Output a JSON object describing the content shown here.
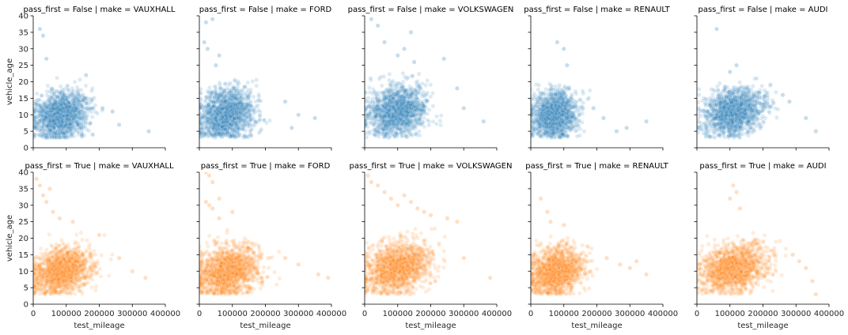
{
  "chart_data": {
    "type": "scatter",
    "layout": "facet-grid",
    "row_variable": "pass_first",
    "col_variable": "make",
    "xlabel": "test_mileage",
    "ylabel": "vehicle_age",
    "xlim": [
      0,
      400000
    ],
    "ylim": [
      0,
      40
    ],
    "xticks": [
      0,
      100000,
      200000,
      300000,
      400000
    ],
    "yticks": [
      0,
      5,
      10,
      15,
      20,
      25,
      30,
      35,
      40
    ],
    "grid": false,
    "alpha": 0.15,
    "rows": [
      {
        "value": "False",
        "color": "#1f77b4"
      },
      {
        "value": "True",
        "color": "#ff7f0e"
      }
    ],
    "panels": [
      {
        "title": "pass_first = False | make = VAUXHALL",
        "row": 0,
        "col": 0,
        "cluster": {
          "x_center": 85000,
          "x_spread": 40000,
          "y_center": 10,
          "y_spread": 3.5,
          "x_max_typical": 220000,
          "y_max_typical": 22
        },
        "outliers": [
          [
            20000,
            36
          ],
          [
            30000,
            34
          ],
          [
            40000,
            27
          ],
          [
            160000,
            22
          ],
          [
            210000,
            12
          ],
          [
            240000,
            11
          ],
          [
            260000,
            7
          ],
          [
            350000,
            5
          ],
          [
            180000,
            4
          ]
        ]
      },
      {
        "title": "pass_first = False | make = FORD",
        "row": 0,
        "col": 1,
        "cluster": {
          "x_center": 80000,
          "x_spread": 42000,
          "y_center": 10,
          "y_spread": 3.8,
          "x_max_typical": 230000,
          "y_max_typical": 22
        },
        "outliers": [
          [
            20000,
            38
          ],
          [
            40000,
            39
          ],
          [
            15000,
            32
          ],
          [
            25000,
            30
          ],
          [
            60000,
            28
          ],
          [
            50000,
            25
          ],
          [
            260000,
            14
          ],
          [
            300000,
            10
          ],
          [
            280000,
            6
          ],
          [
            350000,
            9
          ]
        ]
      },
      {
        "title": "pass_first = False | make = VOLKSWAGEN",
        "row": 0,
        "col": 2,
        "cluster": {
          "x_center": 95000,
          "x_spread": 45000,
          "y_center": 11,
          "y_spread": 3.8,
          "x_max_typical": 240000,
          "y_max_typical": 24
        },
        "outliers": [
          [
            20000,
            39
          ],
          [
            40000,
            37
          ],
          [
            140000,
            35
          ],
          [
            60000,
            32
          ],
          [
            120000,
            30
          ],
          [
            100000,
            28
          ],
          [
            150000,
            26
          ],
          [
            280000,
            18
          ],
          [
            300000,
            12
          ],
          [
            360000,
            8
          ],
          [
            240000,
            27
          ]
        ]
      },
      {
        "title": "pass_first = False | make = RENAULT",
        "row": 0,
        "col": 3,
        "cluster": {
          "x_center": 70000,
          "x_spread": 35000,
          "y_center": 10,
          "y_spread": 3.5,
          "x_max_typical": 200000,
          "y_max_typical": 20
        },
        "outliers": [
          [
            80000,
            32
          ],
          [
            100000,
            30
          ],
          [
            110000,
            25
          ],
          [
            190000,
            12
          ],
          [
            220000,
            9
          ],
          [
            290000,
            6
          ],
          [
            350000,
            8
          ],
          [
            260000,
            5
          ]
        ]
      },
      {
        "title": "pass_first = False | make = AUDI",
        "row": 0,
        "col": 4,
        "cluster": {
          "x_center": 110000,
          "x_spread": 45000,
          "y_center": 11,
          "y_spread": 3.5,
          "x_max_typical": 250000,
          "y_max_typical": 22
        },
        "outliers": [
          [
            60000,
            36
          ],
          [
            120000,
            25
          ],
          [
            100000,
            23
          ],
          [
            260000,
            16
          ],
          [
            280000,
            14
          ],
          [
            330000,
            9
          ],
          [
            360000,
            5
          ]
        ]
      },
      {
        "title": "pass_first = True | make = VAUXHALL",
        "row": 1,
        "col": 0,
        "cluster": {
          "x_center": 85000,
          "x_spread": 45000,
          "y_center": 10,
          "y_spread": 3.5,
          "x_max_typical": 240000,
          "y_max_typical": 22
        },
        "outliers": [
          [
            10000,
            38
          ],
          [
            20000,
            36
          ],
          [
            30000,
            33
          ],
          [
            40000,
            31
          ],
          [
            50000,
            35
          ],
          [
            60000,
            28
          ],
          [
            80000,
            26
          ],
          [
            120000,
            25
          ],
          [
            200000,
            21
          ],
          [
            260000,
            14
          ],
          [
            300000,
            10
          ],
          [
            340000,
            8
          ]
        ]
      },
      {
        "title": "pass_first = True | make = FORD",
        "row": 1,
        "col": 1,
        "cluster": {
          "x_center": 85000,
          "x_spread": 48000,
          "y_center": 10,
          "y_spread": 3.8,
          "x_max_typical": 260000,
          "y_max_typical": 23
        },
        "outliers": [
          [
            20000,
            40
          ],
          [
            30000,
            39
          ],
          [
            40000,
            37
          ],
          [
            20000,
            31
          ],
          [
            30000,
            30
          ],
          [
            40000,
            29
          ],
          [
            60000,
            32
          ],
          [
            60000,
            26
          ],
          [
            100000,
            28
          ],
          [
            260000,
            14
          ],
          [
            300000,
            12
          ],
          [
            360000,
            9
          ],
          [
            390000,
            8
          ]
        ]
      },
      {
        "title": "pass_first = True | make = VOLKSWAGEN",
        "row": 1,
        "col": 2,
        "cluster": {
          "x_center": 95000,
          "x_spread": 48000,
          "y_center": 11,
          "y_spread": 3.8,
          "x_max_typical": 270000,
          "y_max_typical": 23
        },
        "outliers": [
          [
            10000,
            39
          ],
          [
            20000,
            37
          ],
          [
            40000,
            36
          ],
          [
            60000,
            34
          ],
          [
            80000,
            32
          ],
          [
            100000,
            30
          ],
          [
            120000,
            33
          ],
          [
            140000,
            31
          ],
          [
            160000,
            29
          ],
          [
            180000,
            28
          ],
          [
            200000,
            27
          ],
          [
            250000,
            26
          ],
          [
            280000,
            25
          ],
          [
            300000,
            14
          ],
          [
            380000,
            8
          ]
        ]
      },
      {
        "title": "pass_first = True | make = RENAULT",
        "row": 1,
        "col": 3,
        "cluster": {
          "x_center": 75000,
          "x_spread": 40000,
          "y_center": 10,
          "y_spread": 3.5,
          "x_max_typical": 220000,
          "y_max_typical": 21
        },
        "outliers": [
          [
            30000,
            32
          ],
          [
            50000,
            28
          ],
          [
            60000,
            25
          ],
          [
            100000,
            24
          ],
          [
            230000,
            14
          ],
          [
            270000,
            12
          ],
          [
            300000,
            11
          ],
          [
            320000,
            13
          ],
          [
            350000,
            9
          ]
        ]
      },
      {
        "title": "pass_first = True | make = AUDI",
        "row": 1,
        "col": 4,
        "cluster": {
          "x_center": 110000,
          "x_spread": 48000,
          "y_center": 11,
          "y_spread": 3.5,
          "x_max_typical": 270000,
          "y_max_typical": 22
        },
        "outliers": [
          [
            110000,
            36
          ],
          [
            120000,
            34
          ],
          [
            100000,
            32
          ],
          [
            130000,
            29
          ],
          [
            290000,
            15
          ],
          [
            310000,
            13
          ],
          [
            330000,
            11
          ],
          [
            350000,
            7
          ],
          [
            360000,
            3
          ]
        ]
      }
    ]
  }
}
